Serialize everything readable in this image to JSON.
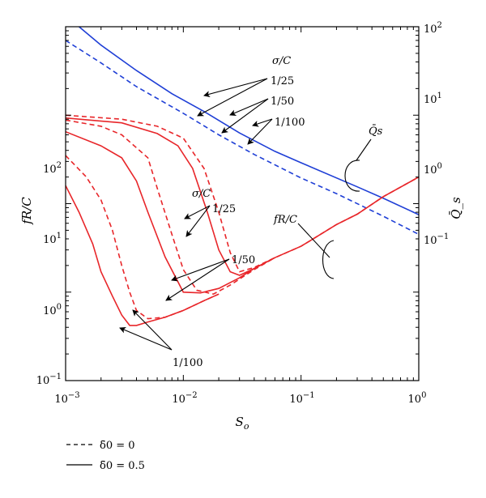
{
  "chart_data": {
    "type": "line",
    "xlabel": "S_o",
    "ylabel_left": "fR/C",
    "ylabel_right": "Q̄_s",
    "x_scale": "log",
    "y_scale": "log",
    "xlim": [
      0.001,
      1
    ],
    "ylim_left": [
      0.1,
      1000
    ],
    "ylim_right": [
      0.01,
      100
    ],
    "x_ticks": [
      {
        "v": 0.001,
        "b": "10",
        "e": "−3"
      },
      {
        "v": 0.01,
        "b": "10",
        "e": "−2"
      },
      {
        "v": 0.1,
        "b": "10",
        "e": "−1"
      },
      {
        "v": 1,
        "b": "10",
        "e": "0"
      }
    ],
    "y_ticks_left": [
      {
        "v": 0.1,
        "b": "10",
        "e": "−1"
      },
      {
        "v": 1,
        "b": "10",
        "e": "0"
      },
      {
        "v": 10,
        "b": "10",
        "e": "1"
      },
      {
        "v": 100,
        "b": "10",
        "e": "2"
      }
    ],
    "y_ticks_right": [
      {
        "v": 0.1,
        "b": "10",
        "e": "−1"
      },
      {
        "v": 1,
        "b": "10",
        "e": "0"
      },
      {
        "v": 10,
        "b": "10",
        "e": "1"
      },
      {
        "v": 100,
        "b": "10",
        "e": "2"
      }
    ],
    "colors": {
      "friction": "#e8262a",
      "discharge": "#1f3fd6"
    },
    "series": [
      {
        "group": "Qs",
        "sigma_C": "1/25",
        "delta0": "0.5",
        "style": "solid",
        "points": [
          [
            0.0013,
            100
          ],
          [
            0.002,
            62
          ],
          [
            0.004,
            32
          ],
          [
            0.008,
            17.5
          ],
          [
            0.015,
            11
          ],
          [
            0.03,
            6.3
          ],
          [
            0.06,
            3.9
          ],
          [
            0.1,
            2.9
          ],
          [
            0.3,
            1.55
          ],
          [
            0.5,
            1.15
          ],
          [
            1,
            0.75
          ]
        ]
      },
      {
        "group": "Qs",
        "sigma_C": "1/25",
        "delta0": "0",
        "style": "dashed",
        "points": [
          [
            0.001,
            70
          ],
          [
            0.002,
            39
          ],
          [
            0.004,
            21
          ],
          [
            0.01,
            10.5
          ],
          [
            0.02,
            6
          ],
          [
            0.04,
            3.6
          ],
          [
            0.1,
            1.95
          ],
          [
            0.2,
            1.3
          ],
          [
            0.5,
            0.72
          ],
          [
            1,
            0.45
          ]
        ]
      },
      {
        "group": "fRC",
        "sigma_C": "1/25",
        "delta0": "0",
        "style": "dashed",
        "points": [
          [
            0.001,
            100
          ],
          [
            0.003,
            90
          ],
          [
            0.006,
            75
          ],
          [
            0.01,
            55
          ],
          [
            0.015,
            25
          ],
          [
            0.02,
            8
          ],
          [
            0.025,
            2.8
          ],
          [
            0.03,
            1.7
          ],
          [
            0.04,
            1.9
          ],
          [
            0.06,
            2.45
          ],
          [
            0.1,
            3.3
          ],
          [
            0.2,
            5.8
          ],
          [
            0.3,
            7.6
          ],
          [
            0.5,
            12
          ],
          [
            1,
            20
          ]
        ]
      },
      {
        "group": "fRC",
        "sigma_C": "1/25",
        "delta0": "0.5",
        "style": "solid",
        "points": [
          [
            0.001,
            93
          ],
          [
            0.003,
            82
          ],
          [
            0.006,
            62
          ],
          [
            0.009,
            45
          ],
          [
            0.012,
            25
          ],
          [
            0.016,
            8
          ],
          [
            0.02,
            3
          ],
          [
            0.025,
            1.7
          ],
          [
            0.03,
            1.55
          ],
          [
            0.04,
            1.85
          ],
          [
            0.06,
            2.45
          ],
          [
            0.1,
            3.3
          ],
          [
            0.2,
            5.8
          ],
          [
            0.3,
            7.6
          ],
          [
            0.5,
            12
          ],
          [
            1,
            20
          ]
        ]
      },
      {
        "group": "fRC",
        "sigma_C": "1/50",
        "delta0": "0",
        "style": "dashed",
        "points": [
          [
            0.001,
            88
          ],
          [
            0.002,
            75
          ],
          [
            0.003,
            60
          ],
          [
            0.005,
            33
          ],
          [
            0.006,
            15
          ],
          [
            0.008,
            4.5
          ],
          [
            0.01,
            1.8
          ],
          [
            0.013,
            1.05
          ],
          [
            0.018,
            0.95
          ],
          [
            0.025,
            1.2
          ],
          [
            0.04,
            1.8
          ],
          [
            0.06,
            2.45
          ]
        ]
      },
      {
        "group": "fRC",
        "sigma_C": "1/50",
        "delta0": "0.5",
        "style": "solid",
        "points": [
          [
            0.001,
            65
          ],
          [
            0.002,
            45
          ],
          [
            0.003,
            33
          ],
          [
            0.004,
            18
          ],
          [
            0.005,
            8
          ],
          [
            0.007,
            2.5
          ],
          [
            0.01,
            1.0
          ],
          [
            0.014,
            0.98
          ],
          [
            0.02,
            1.1
          ],
          [
            0.03,
            1.45
          ],
          [
            0.04,
            1.85
          ],
          [
            0.06,
            2.45
          ]
        ]
      },
      {
        "group": "fRC",
        "sigma_C": "1/100",
        "delta0": "0",
        "style": "dashed",
        "points": [
          [
            0.001,
            35
          ],
          [
            0.0015,
            20
          ],
          [
            0.002,
            11
          ],
          [
            0.0025,
            5
          ],
          [
            0.003,
            2
          ],
          [
            0.0035,
            1.0
          ],
          [
            0.004,
            0.62
          ],
          [
            0.005,
            0.5
          ],
          [
            0.007,
            0.52
          ],
          [
            0.01,
            0.62
          ],
          [
            0.015,
            0.8
          ],
          [
            0.02,
            0.95
          ]
        ]
      },
      {
        "group": "fRC",
        "sigma_C": "1/100",
        "delta0": "0.5",
        "style": "solid",
        "points": [
          [
            0.001,
            16
          ],
          [
            0.0013,
            8
          ],
          [
            0.0017,
            3.5
          ],
          [
            0.002,
            1.7
          ],
          [
            0.0025,
            0.9
          ],
          [
            0.003,
            0.55
          ],
          [
            0.0035,
            0.42
          ],
          [
            0.004,
            0.42
          ],
          [
            0.005,
            0.46
          ],
          [
            0.007,
            0.52
          ],
          [
            0.01,
            0.62
          ],
          [
            0.015,
            0.8
          ],
          [
            0.02,
            0.95
          ]
        ]
      }
    ],
    "annotations": {
      "sigma_c": "σ/C",
      "qs_l25": "1/25",
      "qs_l50": "1/50",
      "qs_l100": "1/100",
      "fr_l25": "1/25",
      "fr_l50": "1/50",
      "fr_l100": "1/100",
      "qs_group": "Q̄s",
      "fr_group": "fR/C"
    },
    "legend": {
      "dashed": "δ̄0 = 0",
      "solid": "δ̄0 = 0.5",
      "placement": "bottom-left"
    }
  }
}
